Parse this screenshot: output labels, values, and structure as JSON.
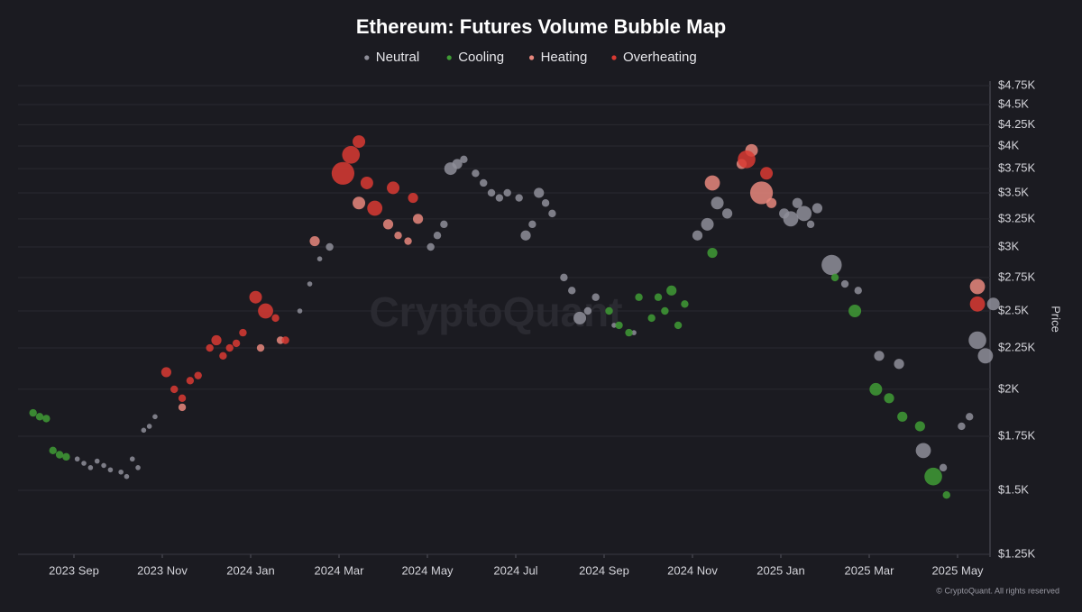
{
  "chart_data": {
    "type": "bubble",
    "title": "Ethereum: Futures Volume Bubble Map",
    "y_label": "Price",
    "watermark": "CryptoQuant",
    "footer": "© CryptoQuant. All rights reserved",
    "log_y": true,
    "grid": true,
    "legend": "top",
    "xlim": [
      "2023-08",
      "2025-05"
    ],
    "xticks": [
      {
        "value": "2023-09",
        "label": "2023 Sep"
      },
      {
        "value": "2023-11",
        "label": "2023 Nov"
      },
      {
        "value": "2024-01",
        "label": "2024 Jan"
      },
      {
        "value": "2024-03",
        "label": "2024 Mar"
      },
      {
        "value": "2024-05",
        "label": "2024 May"
      },
      {
        "value": "2024-07",
        "label": "2024 Jul"
      },
      {
        "value": "2024-09",
        "label": "2024 Sep"
      },
      {
        "value": "2024-11",
        "label": "2024 Nov"
      },
      {
        "value": "2025-01",
        "label": "2025 Jan"
      },
      {
        "value": "2025-03",
        "label": "2025 Mar"
      },
      {
        "value": "2025-05",
        "label": "2025 May"
      }
    ],
    "ylim": [
      1250,
      4750
    ],
    "yticks": [
      {
        "value": 1250,
        "label": "$1.25K"
      },
      {
        "value": 1500,
        "label": "$1.5K"
      },
      {
        "value": 1750,
        "label": "$1.75K"
      },
      {
        "value": 2000,
        "label": "$2K"
      },
      {
        "value": 2250,
        "label": "$2.25K"
      },
      {
        "value": 2500,
        "label": "$2.5K"
      },
      {
        "value": 2750,
        "label": "$2.75K"
      },
      {
        "value": 3000,
        "label": "$3K"
      },
      {
        "value": 3250,
        "label": "$3.25K"
      },
      {
        "value": 3500,
        "label": "$3.5K"
      },
      {
        "value": 3750,
        "label": "$3.75K"
      },
      {
        "value": 4000,
        "label": "$4K"
      },
      {
        "value": 4250,
        "label": "$4.25K"
      },
      {
        "value": 4500,
        "label": "$4.5K"
      },
      {
        "value": 4750,
        "label": "$4.75K"
      }
    ],
    "series": [
      {
        "name": "Neutral",
        "color": "#8e8e99",
        "x": [
          "2023-09",
          "2023-09",
          "2023-09",
          "2023-09",
          "2023-09",
          "2023-09",
          "2023-10",
          "2023-10",
          "2023-10",
          "2023-10",
          "2023-10",
          "2023-10",
          "2023-10",
          "2024-02",
          "2024-02",
          "2024-02",
          "2024-02",
          "2024-05",
          "2024-05",
          "2024-05",
          "2024-05",
          "2024-05",
          "2024-05",
          "2024-06",
          "2024-06",
          "2024-06",
          "2024-06",
          "2024-06",
          "2024-07",
          "2024-07",
          "2024-07",
          "2024-07",
          "2024-07",
          "2024-07",
          "2024-08",
          "2024-08",
          "2024-08",
          "2024-08",
          "2024-08",
          "2024-09",
          "2024-09",
          "2024-11",
          "2024-11",
          "2024-11",
          "2024-11",
          "2025-01",
          "2025-01",
          "2025-01",
          "2025-01",
          "2025-01",
          "2025-01",
          "2025-02",
          "2025-02",
          "2025-02",
          "2025-03",
          "2025-03",
          "2025-04",
          "2025-04",
          "2025-05",
          "2025-05",
          "2025-05",
          "2025-05",
          "2025-05"
        ],
        "values": [
          1640,
          1620,
          1600,
          1630,
          1610,
          1590,
          1580,
          1560,
          1640,
          1600,
          1780,
          1800,
          1850,
          2500,
          2700,
          2900,
          3000,
          3000,
          3100,
          3200,
          3750,
          3800,
          3850,
          3700,
          3600,
          3500,
          3450,
          3500,
          3450,
          3100,
          3200,
          3500,
          3400,
          3300,
          2750,
          2650,
          2450,
          2500,
          2600,
          2400,
          2350,
          3100,
          3200,
          3400,
          3300,
          3300,
          3250,
          3400,
          3300,
          3200,
          3350,
          2850,
          2700,
          2650,
          2200,
          2150,
          1680,
          1600,
          1800,
          1850,
          2300,
          2200,
          2550
        ],
        "sizes": [
          2,
          2,
          2,
          2,
          2,
          2,
          2,
          2,
          2,
          2,
          2,
          2,
          2,
          2,
          2,
          2,
          3,
          3,
          3,
          3,
          5,
          4,
          3,
          3,
          3,
          3,
          3,
          3,
          3,
          4,
          3,
          4,
          3,
          3,
          3,
          3,
          5,
          3,
          3,
          2,
          2,
          4,
          5,
          5,
          4,
          4,
          6,
          4,
          6,
          3,
          4,
          8,
          3,
          3,
          4,
          4,
          6,
          3,
          3,
          3,
          7,
          6,
          5
        ]
      },
      {
        "name": "Cooling",
        "color": "#3f9b35",
        "x": [
          "2023-08",
          "2023-08",
          "2023-08",
          "2023-08",
          "2023-08",
          "2023-08",
          "2024-09",
          "2024-09",
          "2024-09",
          "2024-09",
          "2024-10",
          "2024-10",
          "2024-10",
          "2024-10",
          "2024-10",
          "2024-10",
          "2024-11",
          "2025-02",
          "2025-02",
          "2025-03",
          "2025-03",
          "2025-03",
          "2025-04",
          "2025-04",
          "2025-04"
        ],
        "values": [
          1870,
          1850,
          1840,
          1680,
          1660,
          1650,
          2500,
          2400,
          2350,
          2600,
          2450,
          2600,
          2500,
          2650,
          2400,
          2550,
          2950,
          2750,
          2500,
          2000,
          1950,
          1850,
          1800,
          1560,
          1480
        ],
        "sizes": [
          3,
          3,
          3,
          3,
          3,
          3,
          3,
          3,
          3,
          3,
          3,
          3,
          3,
          4,
          3,
          3,
          4,
          3,
          5,
          5,
          4,
          4,
          4,
          7,
          3
        ]
      },
      {
        "name": "Heating",
        "color": "#e8877d",
        "x": [
          "2023-11",
          "2024-01",
          "2024-01",
          "2024-02",
          "2024-03",
          "2024-04",
          "2024-04",
          "2024-04",
          "2024-04",
          "2024-11",
          "2024-12",
          "2024-12",
          "2024-12",
          "2024-12",
          "2025-05"
        ],
        "values": [
          1900,
          2250,
          2300,
          3050,
          3400,
          3200,
          3100,
          3050,
          3250,
          3600,
          3800,
          3950,
          3500,
          3400,
          2680
        ],
        "sizes": [
          3,
          3,
          3,
          4,
          5,
          4,
          3,
          3,
          4,
          6,
          4,
          5,
          9,
          4,
          6
        ]
      },
      {
        "name": "Overheating",
        "color": "#d93a32",
        "x": [
          "2023-11",
          "2023-11",
          "2023-11",
          "2023-11",
          "2023-11",
          "2023-12",
          "2023-12",
          "2023-12",
          "2023-12",
          "2023-12",
          "2023-12",
          "2024-01",
          "2024-01",
          "2024-01",
          "2024-01",
          "2024-03",
          "2024-03",
          "2024-03",
          "2024-03",
          "2024-03",
          "2024-04",
          "2024-04",
          "2024-12",
          "2024-12",
          "2025-05"
        ],
        "values": [
          2100,
          2000,
          1950,
          2050,
          2080,
          2250,
          2300,
          2200,
          2250,
          2280,
          2350,
          2600,
          2500,
          2450,
          2300,
          3700,
          3900,
          4050,
          3600,
          3350,
          3550,
          3450,
          3850,
          3700,
          2550
        ],
        "sizes": [
          4,
          3,
          3,
          3,
          3,
          3,
          4,
          3,
          3,
          3,
          3,
          5,
          6,
          3,
          3,
          9,
          7,
          5,
          5,
          6,
          5,
          4,
          7,
          5,
          6
        ]
      }
    ]
  }
}
